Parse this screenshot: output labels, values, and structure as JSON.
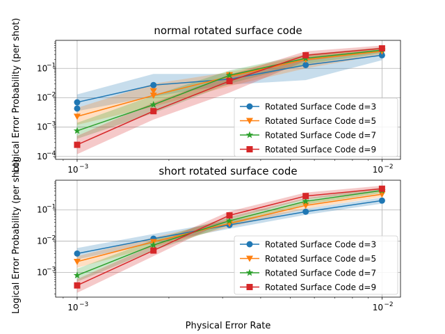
{
  "figure": {
    "xlabel": "Physical Error Rate",
    "ylabel": "Logical Error Probability (per shot)"
  },
  "colors": {
    "d3": "#1f77b4",
    "d5": "#ff7f0e",
    "d7": "#2ca02c",
    "d9": "#d62728",
    "grid": "#b0b0b0"
  },
  "chart_data": [
    {
      "type": "line",
      "title": "normal rotated surface code",
      "xscale": "log",
      "yscale": "log",
      "xlim": [
        0.00085,
        0.0115
      ],
      "ylim": [
        8e-05,
        0.9
      ],
      "xticks": [
        {
          "v": 0.001,
          "m": "10",
          "e": "−3"
        },
        {
          "v": 0.01,
          "m": "10",
          "e": "−2"
        }
      ],
      "yticks": [
        {
          "v": 0.0001,
          "m": "10",
          "e": "−4"
        },
        {
          "v": 0.001,
          "m": "10",
          "e": "−3"
        },
        {
          "v": 0.01,
          "m": "10",
          "e": "−2"
        },
        {
          "v": 0.1,
          "m": "10",
          "e": "−1"
        }
      ],
      "grid": true,
      "legend_position": "lower right",
      "x": [
        0.001,
        0.00178,
        0.00316,
        0.00562,
        0.01
      ],
      "series": [
        {
          "name": "Rotated Surface Code d=3",
          "marker": "circle",
          "color_key": "d3",
          "values": [
            0.007,
            0.027,
            0.043,
            0.13,
            0.28
          ],
          "lower": [
            0.0035,
            0.011,
            0.028,
            0.04,
            0.19
          ],
          "upper": [
            0.013,
            0.065,
            0.065,
            0.19,
            0.4
          ],
          "extra": [
            {
              "x": 0.001,
              "y": 0.0043
            }
          ]
        },
        {
          "name": "Rotated Surface Code d=5",
          "marker": "triangle-down",
          "color_key": "d5",
          "values": [
            0.0023,
            0.012,
            0.053,
            0.2,
            0.38
          ],
          "lower": [
            0.0012,
            0.005,
            0.025,
            0.1,
            0.29
          ],
          "upper": [
            0.0045,
            0.03,
            0.075,
            0.28,
            0.48
          ],
          "extra": [
            {
              "x": 0.00178,
              "y": 0.017
            },
            {
              "x": 0.00316,
              "y": 0.06
            }
          ]
        },
        {
          "name": "Rotated Surface Code d=7",
          "marker": "star",
          "color_key": "d7",
          "values": [
            0.00075,
            0.0058,
            0.058,
            0.22,
            0.42
          ],
          "lower": [
            0.0004,
            0.003,
            0.03,
            0.14,
            0.33
          ],
          "upper": [
            0.0014,
            0.012,
            0.085,
            0.3,
            0.52
          ],
          "extra": []
        },
        {
          "name": "Rotated Surface Code d=9",
          "marker": "square",
          "color_key": "d9",
          "values": [
            0.00025,
            0.0035,
            0.037,
            0.28,
            0.48
          ],
          "lower": [
            0.00012,
            0.0018,
            0.015,
            0.18,
            0.38
          ],
          "upper": [
            0.0005,
            0.0068,
            0.06,
            0.38,
            0.6
          ],
          "extra": []
        }
      ]
    },
    {
      "type": "line",
      "title": "short rotated surface code",
      "xscale": "log",
      "yscale": "log",
      "xlim": [
        0.00085,
        0.0115
      ],
      "ylim": [
        0.00016,
        0.9
      ],
      "xticks": [
        {
          "v": 0.001,
          "m": "10",
          "e": "−3"
        },
        {
          "v": 0.01,
          "m": "10",
          "e": "−2"
        }
      ],
      "yticks": [
        {
          "v": 0.001,
          "m": "10",
          "e": "−3"
        },
        {
          "v": 0.01,
          "m": "10",
          "e": "−2"
        },
        {
          "v": 0.1,
          "m": "10",
          "e": "−1"
        }
      ],
      "grid": true,
      "legend_position": "lower right",
      "x": [
        0.001,
        0.00178,
        0.00316,
        0.00562,
        0.01
      ],
      "series": [
        {
          "name": "Rotated Surface Code d=3",
          "marker": "circle",
          "color_key": "d3",
          "values": [
            0.004,
            0.012,
            0.033,
            0.088,
            0.2
          ],
          "lower": [
            0.0026,
            0.0085,
            0.025,
            0.07,
            0.16
          ],
          "upper": [
            0.006,
            0.017,
            0.045,
            0.11,
            0.25
          ],
          "extra": []
        },
        {
          "name": "Rotated Surface Code d=5",
          "marker": "triangle-down",
          "color_key": "d5",
          "values": [
            0.0022,
            0.0095,
            0.037,
            0.14,
            0.32
          ],
          "lower": [
            0.0014,
            0.0065,
            0.028,
            0.11,
            0.26
          ],
          "upper": [
            0.0033,
            0.013,
            0.05,
            0.18,
            0.4
          ],
          "extra": []
        },
        {
          "name": "Rotated Surface Code d=7",
          "marker": "star",
          "color_key": "d7",
          "values": [
            0.0008,
            0.0075,
            0.045,
            0.19,
            0.42
          ],
          "lower": [
            0.0005,
            0.005,
            0.033,
            0.15,
            0.35
          ],
          "upper": [
            0.0013,
            0.011,
            0.06,
            0.24,
            0.52
          ],
          "extra": []
        },
        {
          "name": "Rotated Surface Code d=9",
          "marker": "square",
          "color_key": "d9",
          "values": [
            0.00038,
            0.005,
            0.067,
            0.28,
            0.48
          ],
          "lower": [
            0.00022,
            0.0033,
            0.05,
            0.22,
            0.4
          ],
          "upper": [
            0.0006,
            0.0075,
            0.09,
            0.36,
            0.6
          ],
          "extra": []
        }
      ]
    }
  ]
}
